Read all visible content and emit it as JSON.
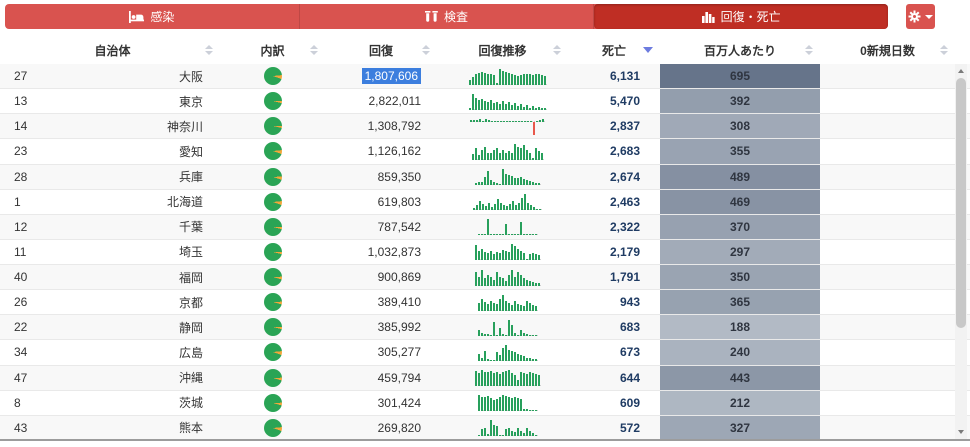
{
  "palette": {
    "bar_red": "#d9534f",
    "active_tab_red": "#bf2e24",
    "spark_green": "#28a05c",
    "spark_negative_red": "#e8584b",
    "pie_green": "#2aa455",
    "pie_orange": "#f2a73b",
    "selection_blue": "#3c7ede",
    "death_text": "#1f3b63",
    "pm_light": "#b2bac5",
    "pm_dark": "#66748a",
    "sort_active": "#6d7cdf"
  },
  "tabs": [
    {
      "label": "感染",
      "icon": "bed-icon",
      "active": false
    },
    {
      "label": "検査",
      "icon": "vials-icon",
      "active": false
    },
    {
      "label": "回復・死亡",
      "icon": "bar-chart-icon",
      "active": true
    }
  ],
  "settings": {
    "icon": "gear-icon"
  },
  "table": {
    "columns": [
      {
        "label": "自治体",
        "sort": "none"
      },
      {
        "label": "内訳",
        "sort": "none"
      },
      {
        "label": "回復",
        "sort": "none"
      },
      {
        "label": "回復推移",
        "sort": "none"
      },
      {
        "label": "死亡",
        "sort": "desc"
      },
      {
        "label": "百万人あたり",
        "sort": "none"
      },
      {
        "label": "0新規日数",
        "sort": "none"
      }
    ],
    "per_million_scale": {
      "min": 188,
      "max": 695
    },
    "rows": [
      {
        "code": "27",
        "name": "大阪",
        "recovery": "1,807,606",
        "selected": true,
        "deaths": "6,131",
        "per_million": 695,
        "pie_pct": 7,
        "trend": [
          22,
          38,
          50,
          58,
          60,
          57,
          54,
          50,
          45,
          6,
          78,
          66,
          60,
          56,
          52,
          48,
          44,
          46,
          50,
          54,
          52,
          47,
          50,
          53,
          49,
          44
        ]
      },
      {
        "code": "13",
        "name": "東京",
        "recovery": "2,822,011",
        "selected": false,
        "deaths": "5,470",
        "per_million": 392,
        "pie_pct": 4,
        "trend": [
          12,
          90,
          68,
          55,
          62,
          50,
          45,
          56,
          40,
          46,
          34,
          50,
          30,
          42,
          26,
          36,
          20,
          30,
          16,
          26,
          12,
          20,
          10,
          16,
          8,
          10
        ]
      },
      {
        "code": "14",
        "name": "神奈川",
        "recovery": "1,308,792",
        "selected": false,
        "deaths": "2,837",
        "per_million": 308,
        "pie_pct": 3,
        "trend": [
          12,
          14,
          10,
          16,
          8,
          18,
          10,
          8,
          7,
          6,
          5,
          6,
          5,
          4,
          4,
          3,
          4,
          3,
          3,
          3,
          3,
          -75,
          4,
          14,
          16
        ]
      },
      {
        "code": "23",
        "name": "愛知",
        "recovery": "1,126,162",
        "selected": false,
        "deaths": "2,683",
        "per_million": 355,
        "pie_pct": 7,
        "trend": [
          28,
          54,
          24,
          44,
          60,
          34,
          30,
          46,
          56,
          34,
          46,
          30,
          40,
          34,
          74,
          62,
          56,
          70,
          46,
          30,
          8,
          56,
          40,
          34
        ]
      },
      {
        "code": "28",
        "name": "兵庫",
        "recovery": "859,350",
        "selected": false,
        "deaths": "2,674",
        "per_million": 489,
        "pie_pct": 6,
        "trend": [
          10,
          14,
          12,
          34,
          56,
          20,
          12,
          8,
          6,
          64,
          46,
          40,
          36,
          30,
          28,
          32,
          26,
          20,
          16,
          12,
          10,
          8
        ]
      },
      {
        "code": "1",
        "name": "北海道",
        "recovery": "619,803",
        "selected": false,
        "deaths": "2,463",
        "per_million": 469,
        "pie_pct": 7,
        "trend": [
          10,
          24,
          44,
          30,
          20,
          34,
          16,
          30,
          54,
          36,
          24,
          20,
          30,
          44,
          26,
          36,
          60,
          78,
          36,
          26,
          16,
          8,
          6
        ]
      },
      {
        "code": "12",
        "name": "千葉",
        "recovery": "787,542",
        "selected": false,
        "deaths": "2,322",
        "per_million": 370,
        "pie_pct": 4,
        "trend": [
          3,
          3,
          3,
          72,
          3,
          3,
          3,
          3,
          3,
          50,
          3,
          3,
          3,
          3,
          62,
          3,
          3,
          3,
          3,
          3
        ]
      },
      {
        "code": "11",
        "name": "埼玉",
        "recovery": "1,032,873",
        "selected": false,
        "deaths": "2,179",
        "per_million": 297,
        "pie_pct": 4,
        "trend": [
          72,
          46,
          56,
          40,
          36,
          46,
          30,
          40,
          36,
          50,
          46,
          40,
          76,
          70,
          56,
          46,
          36,
          6,
          30,
          36,
          30,
          26
        ]
      },
      {
        "code": "40",
        "name": "福岡",
        "recovery": "900,869",
        "selected": false,
        "deaths": "1,791",
        "per_million": 350,
        "pie_pct": 5,
        "trend": [
          46,
          30,
          56,
          26,
          36,
          30,
          20,
          46,
          30,
          26,
          16,
          36,
          56,
          30,
          46,
          36,
          26,
          20,
          16,
          12,
          10,
          8
        ]
      },
      {
        "code": "26",
        "name": "京都",
        "recovery": "389,410",
        "selected": false,
        "deaths": "943",
        "per_million": 365,
        "pie_pct": 5,
        "trend": [
          36,
          56,
          40,
          30,
          46,
          36,
          30,
          56,
          76,
          46,
          36,
          26,
          46,
          30,
          26,
          20,
          46,
          36,
          26,
          20
        ]
      },
      {
        "code": "22",
        "name": "静岡",
        "recovery": "385,992",
        "selected": false,
        "deaths": "683",
        "per_million": 188,
        "pie_pct": 4,
        "trend": [
          20,
          8,
          6,
          5,
          4,
          46,
          4,
          26,
          5,
          4,
          52,
          36,
          8,
          4,
          20,
          10,
          6,
          4,
          3,
          3
        ]
      },
      {
        "code": "34",
        "name": "広島",
        "recovery": "305,277",
        "selected": false,
        "deaths": "673",
        "per_million": 240,
        "pie_pct": 7,
        "trend": [
          26,
          10,
          36,
          6,
          5,
          4,
          30,
          20,
          46,
          56,
          40,
          36,
          30,
          26,
          20,
          16,
          12,
          10,
          8,
          6
        ]
      },
      {
        "code": "47",
        "name": "沖縄",
        "recovery": "459,794",
        "selected": false,
        "deaths": "644",
        "per_million": 443,
        "pie_pct": 5,
        "trend": [
          52,
          46,
          56,
          50,
          48,
          52,
          46,
          50,
          44,
          48,
          52,
          56,
          46,
          40,
          20,
          50,
          46,
          42,
          50,
          46,
          44,
          40
        ]
      },
      {
        "code": "8",
        "name": "茨城",
        "recovery": "301,424",
        "selected": false,
        "deaths": "609",
        "per_million": 212,
        "pie_pct": 5,
        "trend": [
          56,
          50,
          48,
          52,
          46,
          40,
          42,
          48,
          56,
          52,
          48,
          46,
          50,
          46,
          42,
          8,
          6,
          5,
          4,
          3
        ]
      },
      {
        "code": "43",
        "name": "熊本",
        "recovery": "269,820",
        "selected": false,
        "deaths": "572",
        "per_million": 327,
        "pie_pct": 7,
        "trend": [
          6,
          26,
          30,
          8,
          56,
          40,
          36,
          6,
          5,
          26,
          30,
          20,
          16,
          30,
          20,
          10,
          30,
          20,
          10,
          6
        ]
      }
    ]
  }
}
